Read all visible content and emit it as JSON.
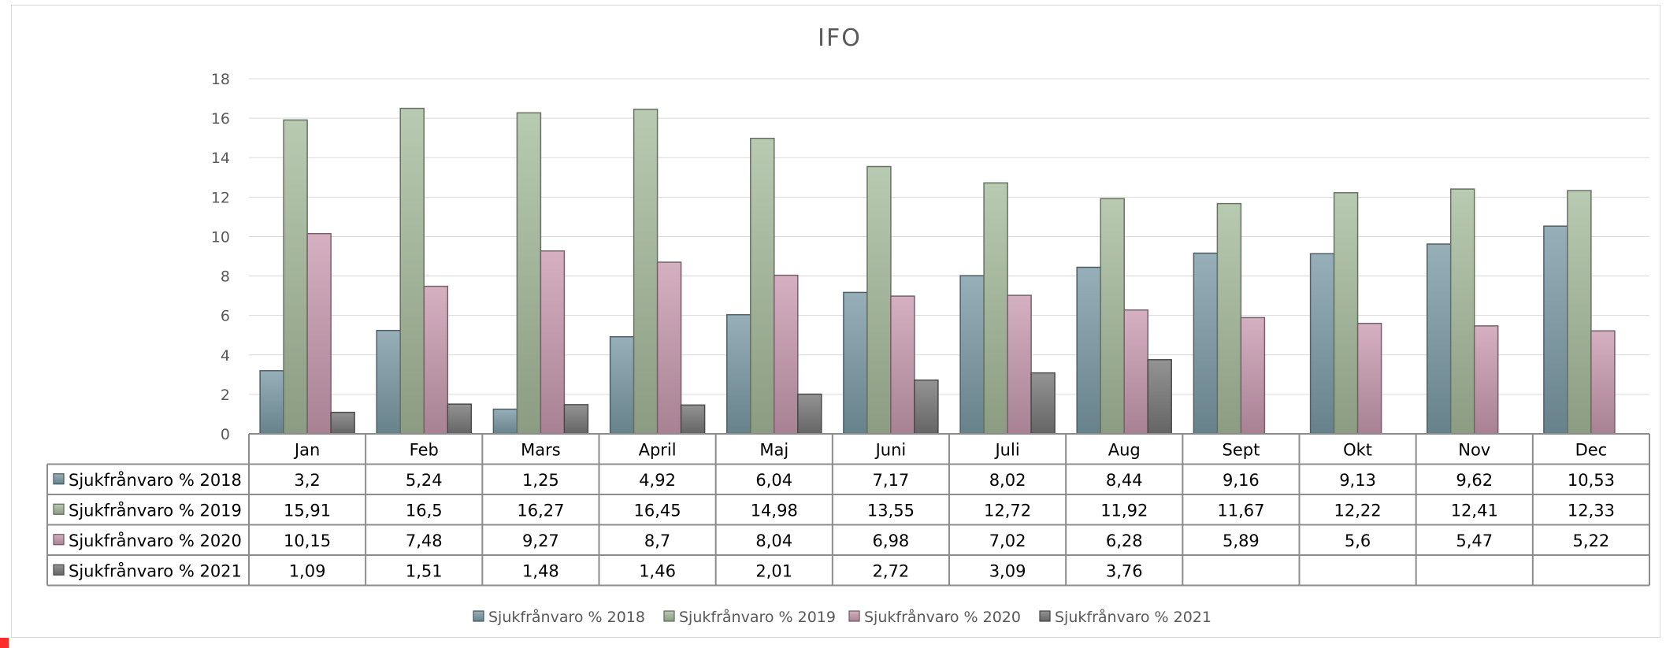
{
  "chart_data": {
    "type": "bar",
    "title": "IFO",
    "categories": [
      "Jan",
      "Feb",
      "Mars",
      "April",
      "Maj",
      "Juni",
      "Juli",
      "Aug",
      "Sept",
      "Okt",
      "Nov",
      "Dec"
    ],
    "series": [
      {
        "name": "Sjukfrånvaro % 2018",
        "color": "#7f9eaa",
        "values": [
          3.2,
          5.24,
          1.25,
          4.92,
          6.04,
          7.17,
          8.02,
          8.44,
          9.16,
          9.13,
          9.62,
          10.53
        ],
        "labels": [
          "3,2",
          "5,24",
          "1,25",
          "4,92",
          "6,04",
          "7,17",
          "8,02",
          "8,44",
          "9,16",
          "9,13",
          "9,62",
          "10,53"
        ]
      },
      {
        "name": "Sjukfrånvaro % 2019",
        "color": "#a9bea0",
        "values": [
          15.91,
          16.5,
          16.27,
          16.45,
          14.98,
          13.55,
          12.72,
          11.92,
          11.67,
          12.22,
          12.41,
          12.33
        ],
        "labels": [
          "15,91",
          "16,5",
          "16,27",
          "16,45",
          "14,98",
          "13,55",
          "12,72",
          "11,92",
          "11,67",
          "12,22",
          "12,41",
          "12,33"
        ]
      },
      {
        "name": "Sjukfrånvaro % 2020",
        "color": "#cc9fb3",
        "values": [
          10.15,
          7.48,
          9.27,
          8.7,
          8.04,
          6.98,
          7.02,
          6.28,
          5.89,
          5.6,
          5.47,
          5.22
        ],
        "labels": [
          "10,15",
          "7,48",
          "9,27",
          "8,7",
          "8,04",
          "6,98",
          "7,02",
          "6,28",
          "5,89",
          "5,6",
          "5,47",
          "5,22"
        ]
      },
      {
        "name": "Sjukfrånvaro % 2021",
        "color": "#7b7b7b",
        "values": [
          1.09,
          1.51,
          1.48,
          1.46,
          2.01,
          2.72,
          3.09,
          3.76,
          null,
          null,
          null,
          null
        ],
        "labels": [
          "1,09",
          "1,51",
          "1,48",
          "1,46",
          "2,01",
          "2,72",
          "3,09",
          "3,76",
          "",
          "",
          "",
          ""
        ]
      }
    ],
    "ylim": [
      0,
      18
    ],
    "yticks": [
      0,
      2,
      4,
      6,
      8,
      10,
      12,
      14,
      16,
      18
    ],
    "grid": true,
    "data_table": true,
    "legend_position": "bottom"
  }
}
